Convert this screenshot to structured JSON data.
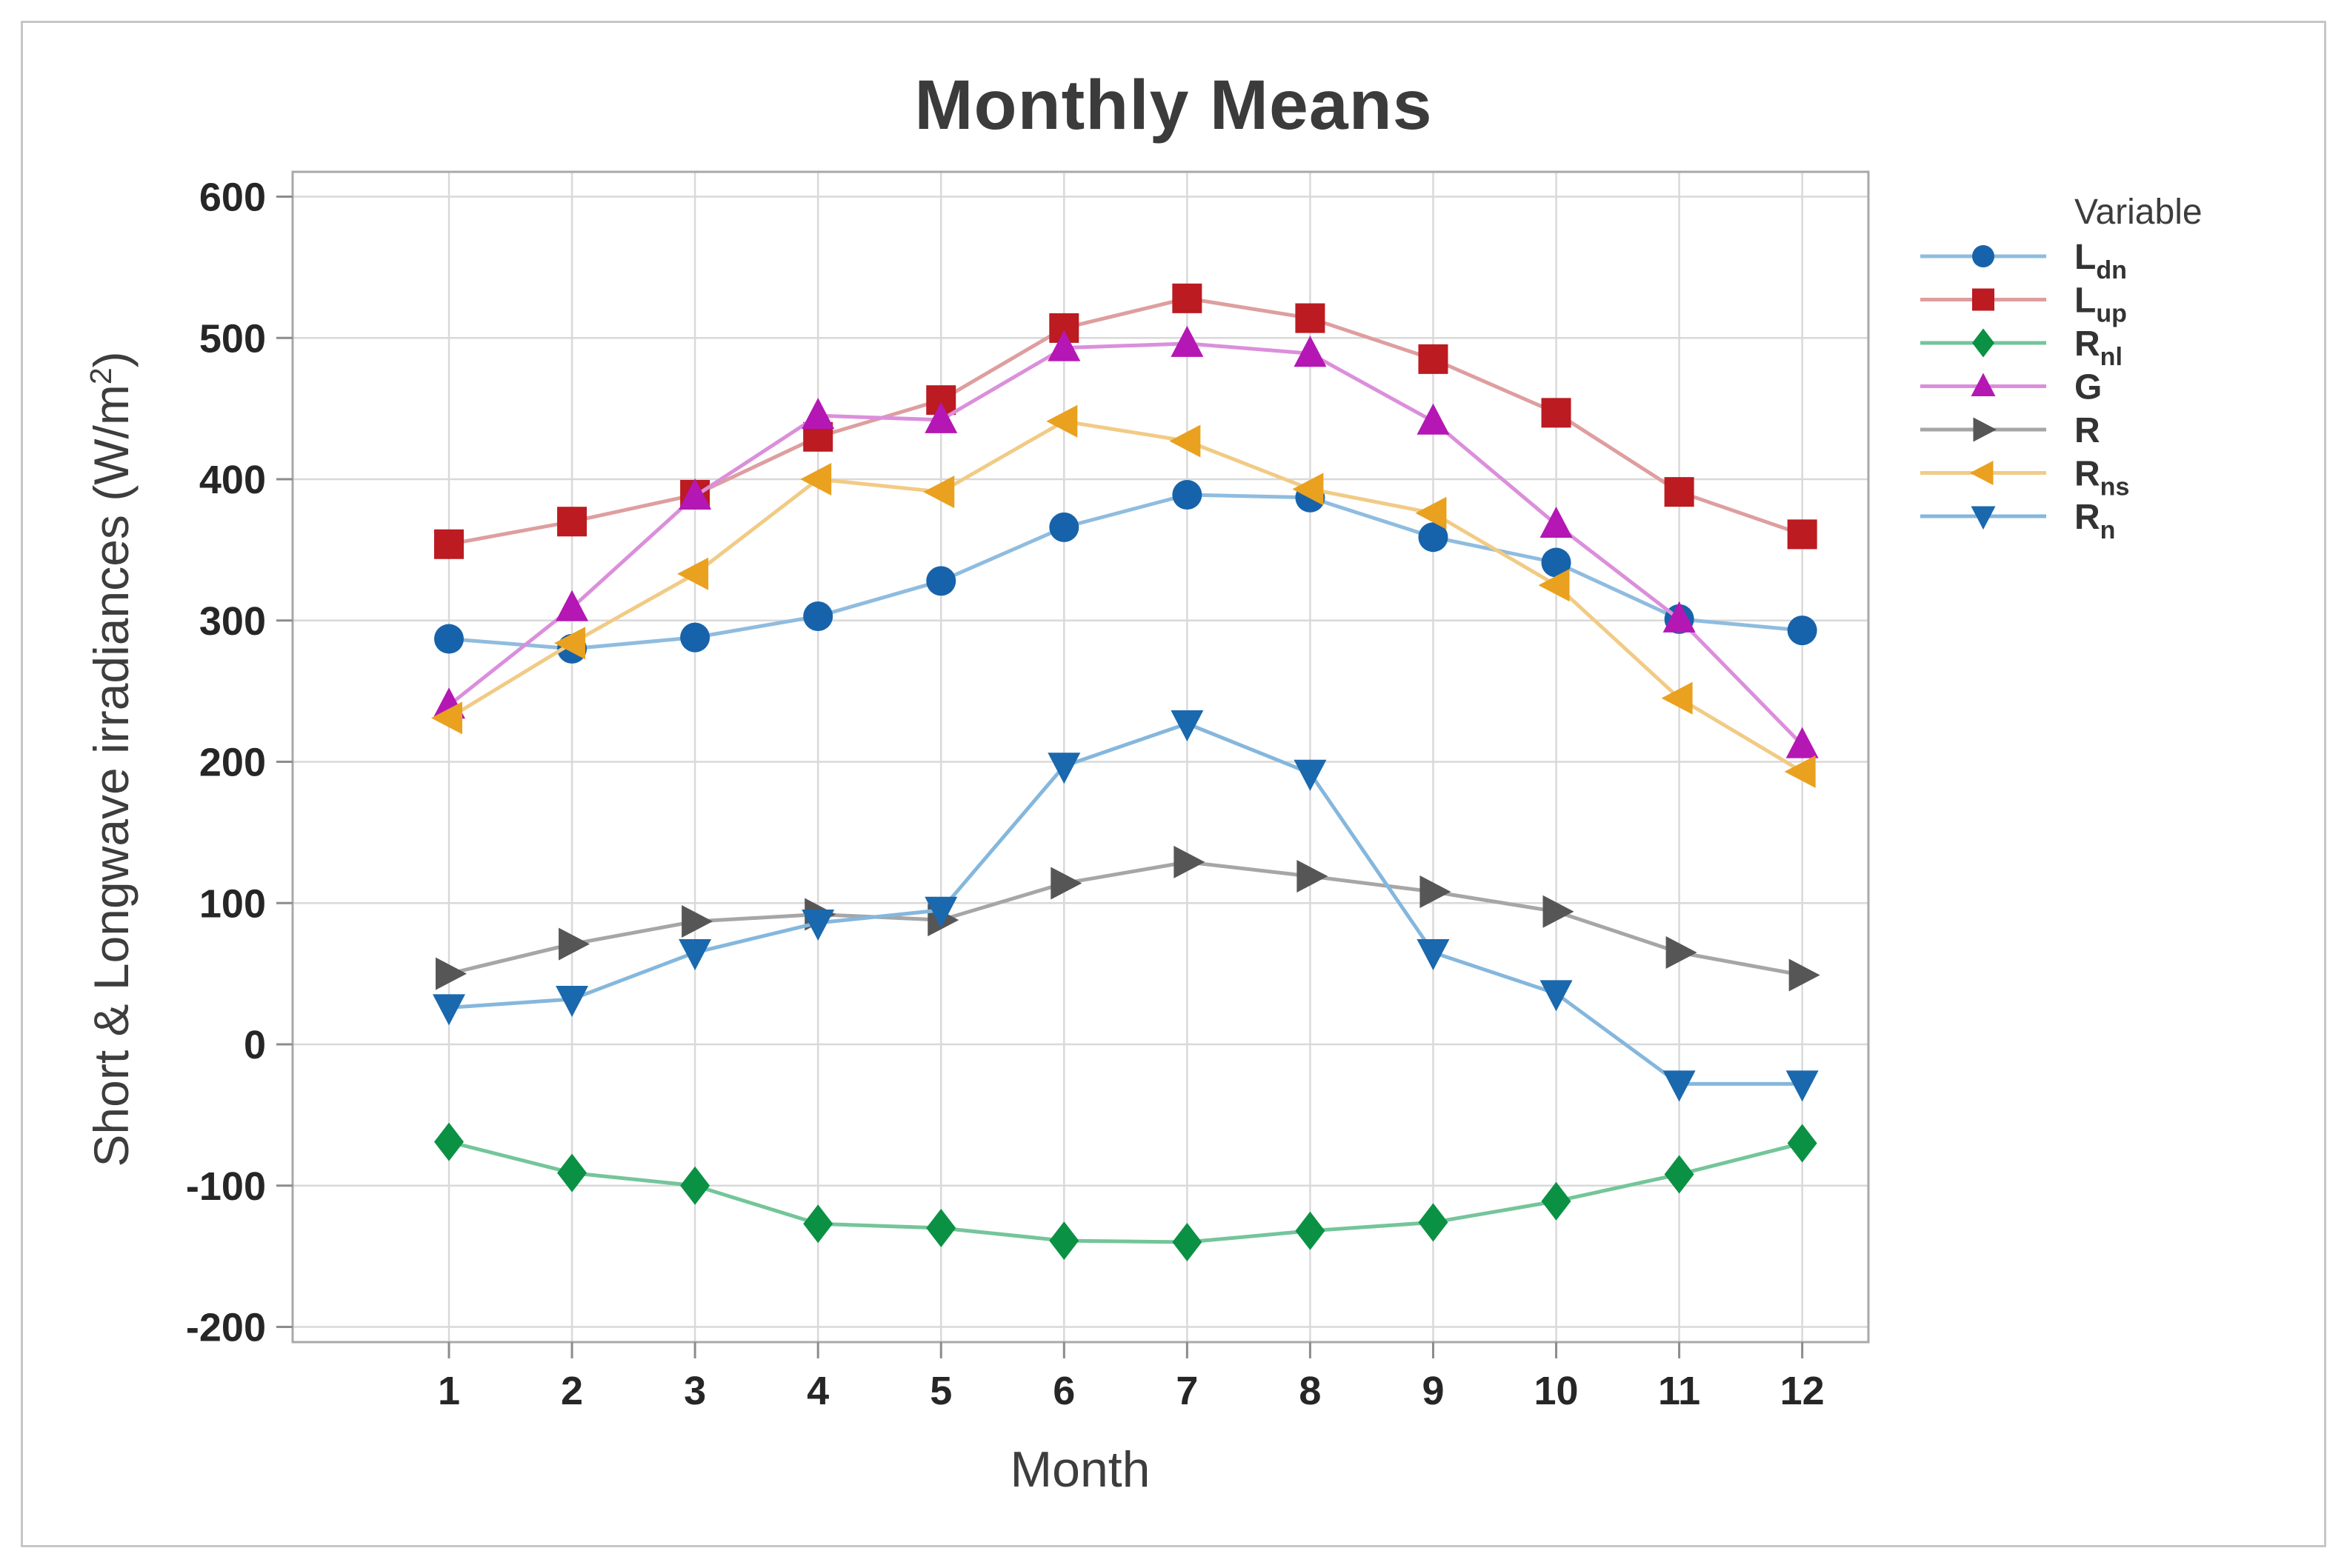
{
  "window": {
    "background": "#ffffff",
    "frame_border_color": "#c6c6c6"
  },
  "chart_data": {
    "type": "line",
    "title": "Monthly Means",
    "xlabel": "Month",
    "ylabel": {
      "prefix": "Short & Longwave irradiances (W/m",
      "sup": "2",
      "suffix": ")"
    },
    "legend_title": "Variable",
    "x": [
      1,
      2,
      3,
      4,
      5,
      6,
      7,
      8,
      9,
      10,
      11,
      12
    ],
    "xlim": [
      1,
      12
    ],
    "ylim": [
      -200,
      600
    ],
    "y_ticks": [
      600,
      500,
      400,
      300,
      200,
      100,
      0,
      -100,
      -200
    ],
    "grid": "both",
    "gridline_color": "#d9d9d9",
    "plot_border_color": "#a9a9a9",
    "tick_color": "#8c8c8c",
    "tick_label_color": "#262626",
    "legend_position": "right",
    "series": [
      {
        "name": "Ldn",
        "label_base": "L",
        "label_sub": "dn",
        "marker": "circle",
        "marker_color": "#1763AB",
        "line_color": "#8FBCDF",
        "values": [
          287,
          280,
          288,
          303,
          328,
          366,
          389,
          387,
          359,
          341,
          301,
          293
        ]
      },
      {
        "name": "Lup",
        "label_base": "L",
        "label_sub": "up",
        "marker": "square",
        "marker_color": "#BB1B21",
        "line_color": "#DE9E9F",
        "values": [
          354,
          370,
          389,
          430,
          456,
          507,
          528,
          514,
          485,
          447,
          391,
          361
        ]
      },
      {
        "name": "Rnl",
        "label_base": "R",
        "label_sub": "nl",
        "marker": "diamond",
        "marker_color": "#0B9144",
        "line_color": "#74C59A",
        "values": [
          -69,
          -91,
          -100,
          -127,
          -130,
          -139,
          -140,
          -132,
          -126,
          -111,
          -92,
          -70
        ]
      },
      {
        "name": "G",
        "label_base": "G",
        "label_sub": "",
        "marker": "triangle-up",
        "marker_color": "#B417B4",
        "line_color": "#DB8FDB",
        "values": [
          240,
          309,
          388,
          445,
          442,
          493,
          496,
          489,
          441,
          368,
          301,
          212
        ]
      },
      {
        "name": "R",
        "label_base": "R",
        "label_sub": "",
        "marker": "triangle-right",
        "marker_color": "#565656",
        "line_color": "#A6A6A6",
        "values": [
          50,
          71,
          87,
          92,
          88,
          114,
          129,
          119,
          108,
          94,
          65,
          49
        ]
      },
      {
        "name": "Rns",
        "label_base": "R",
        "label_sub": "ns",
        "marker": "triangle-left",
        "marker_color": "#E9A11F",
        "line_color": "#F1CB85",
        "values": [
          231,
          284,
          333,
          400,
          391,
          441,
          427,
          393,
          376,
          325,
          245,
          193
        ]
      },
      {
        "name": "Rn",
        "label_base": "R",
        "label_sub": "n",
        "marker": "triangle-down",
        "marker_color": "#1A68AD",
        "line_color": "#85B7DD",
        "values": [
          26,
          32,
          65,
          86,
          95,
          197,
          227,
          192,
          65,
          36,
          -28,
          -28
        ]
      }
    ]
  }
}
